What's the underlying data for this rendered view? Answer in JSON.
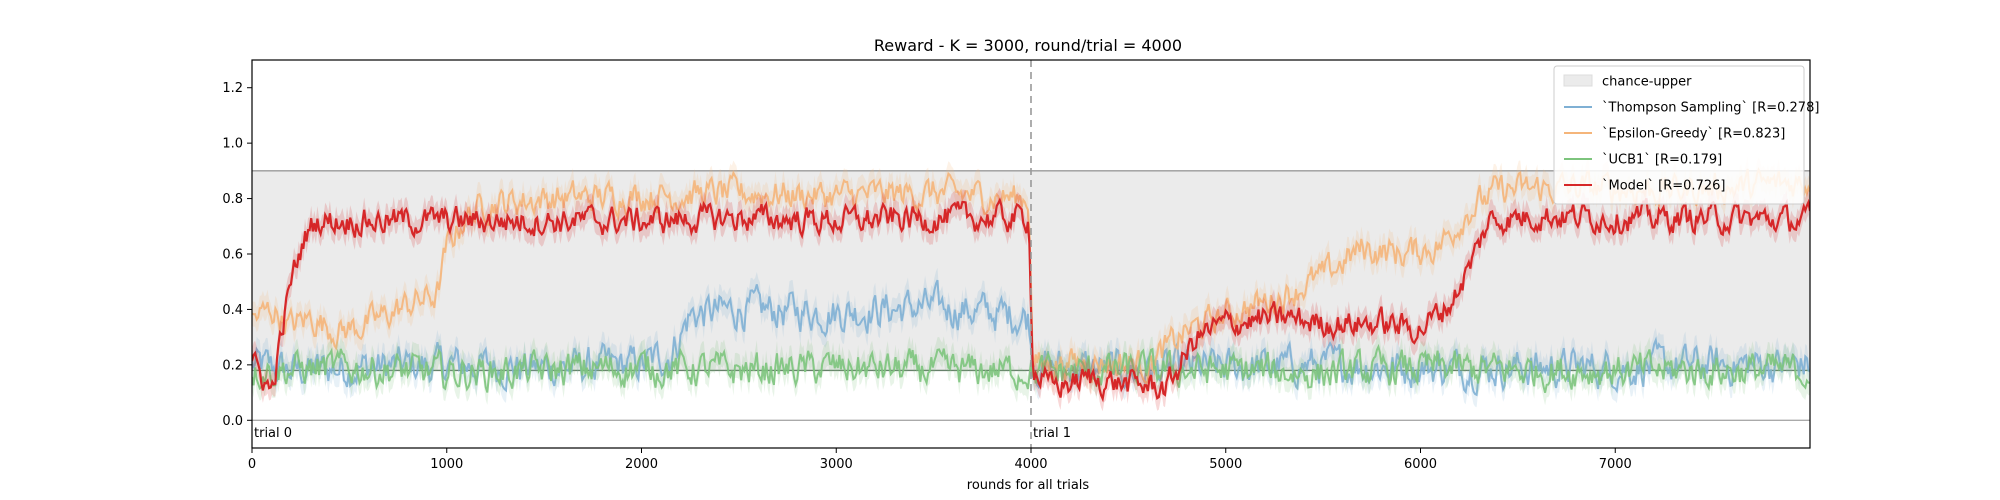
{
  "chart_data": {
    "type": "line",
    "title": "Reward - K = 3000, round/trial = 4000",
    "xlabel": "rounds for all trials",
    "ylabel": "",
    "xlim": [
      0,
      8000
    ],
    "ylim": [
      -0.1,
      1.3
    ],
    "xticks": [
      0,
      1000,
      2000,
      3000,
      4000,
      5000,
      6000,
      7000
    ],
    "xtick_labels": [
      "0",
      "1000",
      "2000",
      "3000",
      "4000",
      "5000",
      "6000",
      "7000"
    ],
    "yticks": [
      0.0,
      0.2,
      0.4,
      0.6,
      0.8,
      1.0,
      1.2
    ],
    "ytick_labels": [
      "0.0",
      "0.2",
      "0.4",
      "0.6",
      "0.8",
      "1.0",
      "1.2"
    ],
    "grid": false,
    "legend_position": "top-right",
    "chance_band": {
      "name": "chance-upper",
      "lower": 0.18,
      "upper": 0.9,
      "color": "#ebebeb"
    },
    "reference_lines": [
      {
        "y": 0.0,
        "color": "#aaaaaa"
      },
      {
        "y": 0.18,
        "color": "#66806a"
      },
      {
        "y": 0.9,
        "color": "#999999"
      }
    ],
    "trial_boundaries": [
      {
        "x": 0,
        "label": "trial 0"
      },
      {
        "x": 4000,
        "label": "trial 1"
      }
    ],
    "series": [
      {
        "name": "`Thompson Sampling` [R=0.278]",
        "color": "#7fb0d4",
        "points": [
          [
            0,
            0.2
          ],
          [
            200,
            0.18
          ],
          [
            500,
            0.19
          ],
          [
            1000,
            0.2
          ],
          [
            1500,
            0.19
          ],
          [
            2000,
            0.2
          ],
          [
            2150,
            0.24
          ],
          [
            2250,
            0.38
          ],
          [
            2500,
            0.4
          ],
          [
            3000,
            0.39
          ],
          [
            3500,
            0.41
          ],
          [
            3900,
            0.38
          ],
          [
            3990,
            0.37
          ],
          [
            4010,
            0.2
          ],
          [
            4500,
            0.18
          ],
          [
            5000,
            0.19
          ],
          [
            5500,
            0.2
          ],
          [
            6000,
            0.19
          ],
          [
            6500,
            0.19
          ],
          [
            7000,
            0.19
          ],
          [
            7500,
            0.2
          ],
          [
            8000,
            0.2
          ]
        ]
      },
      {
        "name": "`Epsilon-Greedy` [R=0.823]",
        "color": "#f5b57a",
        "points": [
          [
            0,
            0.36
          ],
          [
            100,
            0.4
          ],
          [
            200,
            0.34
          ],
          [
            300,
            0.37
          ],
          [
            450,
            0.32
          ],
          [
            600,
            0.35
          ],
          [
            750,
            0.4
          ],
          [
            850,
            0.43
          ],
          [
            950,
            0.45
          ],
          [
            1000,
            0.62
          ],
          [
            1080,
            0.72
          ],
          [
            1200,
            0.78
          ],
          [
            1500,
            0.8
          ],
          [
            2000,
            0.81
          ],
          [
            2500,
            0.82
          ],
          [
            3000,
            0.81
          ],
          [
            3500,
            0.82
          ],
          [
            3990,
            0.8
          ],
          [
            4010,
            0.2
          ],
          [
            4300,
            0.21
          ],
          [
            4600,
            0.2
          ],
          [
            4800,
            0.32
          ],
          [
            5000,
            0.38
          ],
          [
            5300,
            0.45
          ],
          [
            5500,
            0.52
          ],
          [
            5700,
            0.62
          ],
          [
            5900,
            0.6
          ],
          [
            6100,
            0.63
          ],
          [
            6250,
            0.76
          ],
          [
            6400,
            0.83
          ],
          [
            6800,
            0.84
          ],
          [
            7200,
            0.83
          ],
          [
            7600,
            0.84
          ],
          [
            8000,
            0.86
          ]
        ]
      },
      {
        "name": "`UCB1` [R=0.179]",
        "color": "#7dc47d",
        "points": [
          [
            0,
            0.18
          ],
          [
            500,
            0.19
          ],
          [
            1000,
            0.17
          ],
          [
            1500,
            0.18
          ],
          [
            2000,
            0.19
          ],
          [
            2500,
            0.18
          ],
          [
            3000,
            0.19
          ],
          [
            3500,
            0.18
          ],
          [
            3990,
            0.18
          ],
          [
            4010,
            0.17
          ],
          [
            4500,
            0.18
          ],
          [
            5000,
            0.18
          ],
          [
            5500,
            0.17
          ],
          [
            6000,
            0.19
          ],
          [
            6500,
            0.18
          ],
          [
            7000,
            0.18
          ],
          [
            7500,
            0.18
          ],
          [
            8000,
            0.18
          ]
        ]
      },
      {
        "name": "`Model` [R=0.726]",
        "color": "#d62728",
        "points": [
          [
            0,
            0.2
          ],
          [
            60,
            0.15
          ],
          [
            100,
            0.1
          ],
          [
            150,
            0.3
          ],
          [
            200,
            0.5
          ],
          [
            270,
            0.66
          ],
          [
            330,
            0.72
          ],
          [
            500,
            0.72
          ],
          [
            1000,
            0.72
          ],
          [
            1500,
            0.72
          ],
          [
            2000,
            0.72
          ],
          [
            2500,
            0.73
          ],
          [
            3000,
            0.72
          ],
          [
            3500,
            0.73
          ],
          [
            3990,
            0.73
          ],
          [
            4010,
            0.18
          ],
          [
            4100,
            0.12
          ],
          [
            4300,
            0.15
          ],
          [
            4500,
            0.13
          ],
          [
            4700,
            0.12
          ],
          [
            4850,
            0.3
          ],
          [
            5000,
            0.35
          ],
          [
            5300,
            0.37
          ],
          [
            5500,
            0.35
          ],
          [
            5800,
            0.35
          ],
          [
            6000,
            0.33
          ],
          [
            6150,
            0.42
          ],
          [
            6250,
            0.55
          ],
          [
            6350,
            0.72
          ],
          [
            6600,
            0.74
          ],
          [
            7000,
            0.73
          ],
          [
            7500,
            0.73
          ],
          [
            8000,
            0.72
          ]
        ]
      }
    ]
  }
}
